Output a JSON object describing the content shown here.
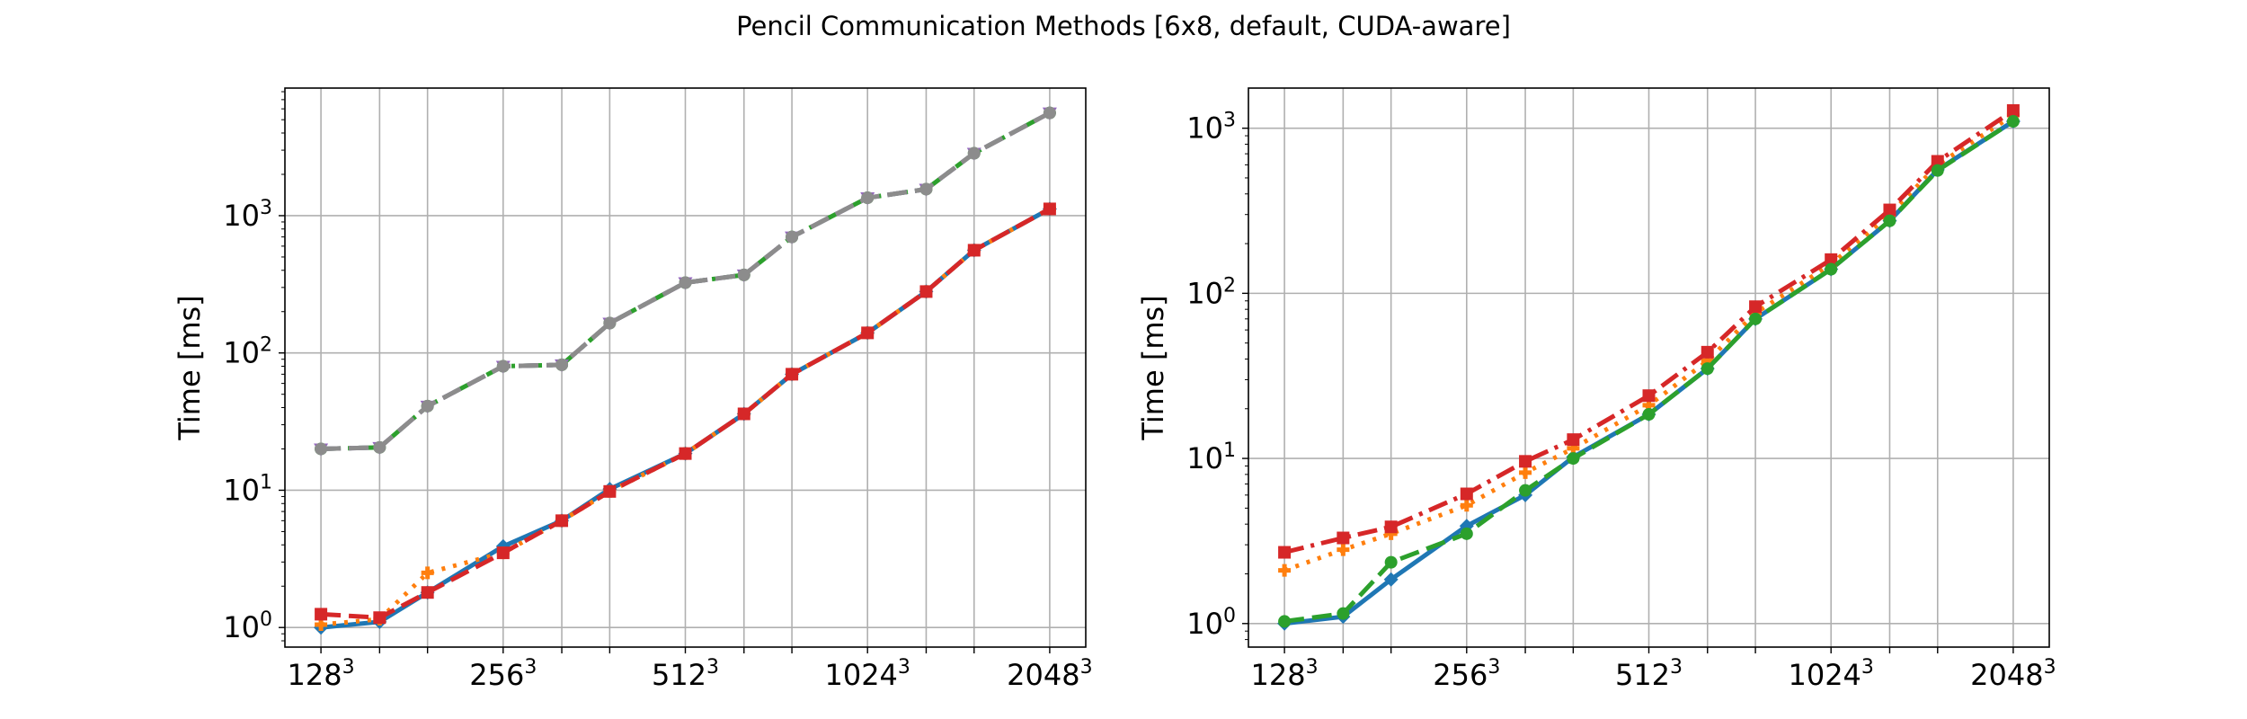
{
  "figure": {
    "title": "Pencil Communication Methods [6x8, default, CUDA-aware]"
  },
  "chart_data": [
    {
      "type": "line",
      "title": "",
      "xlabel": "",
      "ylabel": "Time [ms]",
      "yscale": "log",
      "ylim": [
        0.72,
        8500
      ],
      "grid": true,
      "x": [
        128,
        160,
        192,
        256,
        320,
        384,
        512,
        640,
        768,
        1024,
        1280,
        1536,
        2048
      ],
      "xticks": [
        128,
        256,
        512,
        1024,
        2048
      ],
      "xtick_labels": [
        {
          "base": "128",
          "exp": "3"
        },
        {
          "base": "256",
          "exp": "3"
        },
        {
          "base": "512",
          "exp": "3"
        },
        {
          "base": "1024",
          "exp": "3"
        },
        {
          "base": "2048",
          "exp": "3"
        }
      ],
      "yticks": [
        1,
        10,
        100,
        1000
      ],
      "ytick_labels": [
        {
          "base": "10",
          "exp": "0"
        },
        {
          "base": "10",
          "exp": "1"
        },
        {
          "base": "10",
          "exp": "2"
        },
        {
          "base": "10",
          "exp": "3"
        }
      ],
      "series": [
        {
          "color": "#1f77b4",
          "style": "solid",
          "marker": "diamond",
          "values": [
            1.0,
            1.1,
            1.8,
            3.9,
            6.0,
            10.2,
            18.5,
            36.0,
            70.0,
            140.0,
            280.0,
            560.0,
            1120.0
          ]
        },
        {
          "color": "#ff7f0e",
          "style": "dotted",
          "marker": "plus",
          "values": [
            1.05,
            1.15,
            2.5,
            3.5,
            6.0,
            9.8,
            18.5,
            36.0,
            70.0,
            140.0,
            280.0,
            560.0,
            1120.0
          ]
        },
        {
          "color": "#d62728",
          "style": "dashed",
          "marker": "square",
          "values": [
            1.25,
            1.18,
            1.8,
            3.5,
            6.0,
            9.8,
            18.5,
            36.0,
            70.0,
            140.0,
            280.0,
            560.0,
            1120.0
          ]
        },
        {
          "color": "#2ca02c",
          "style": "dashdot",
          "marker": "circle",
          "values": [
            20.0,
            20.5,
            41.0,
            80.0,
            82.0,
            165.0,
            325.0,
            370.0,
            700.0,
            1350.0,
            1560.0,
            2850.0,
            5600.0
          ]
        },
        {
          "color": "#9467bd",
          "style": "dashed",
          "marker": "triangle",
          "values": [
            20.0,
            20.5,
            41.0,
            80.0,
            82.0,
            165.0,
            325.0,
            370.0,
            700.0,
            1350.0,
            1560.0,
            2850.0,
            5600.0
          ]
        },
        {
          "color": "#8c8c8c",
          "style": "dashed",
          "marker": "circle",
          "values": [
            20.0,
            20.5,
            41.0,
            80.0,
            82.0,
            165.0,
            325.0,
            370.0,
            700.0,
            1350.0,
            1560.0,
            2850.0,
            5600.0
          ]
        }
      ]
    },
    {
      "type": "line",
      "title": "",
      "xlabel": "",
      "ylabel": "Time [ms]",
      "yscale": "log",
      "ylim": [
        0.72,
        1750
      ],
      "grid": true,
      "x": [
        128,
        160,
        192,
        256,
        320,
        384,
        512,
        640,
        768,
        1024,
        1280,
        1536,
        2048
      ],
      "xticks": [
        128,
        256,
        512,
        1024,
        2048
      ],
      "xtick_labels": [
        {
          "base": "128",
          "exp": "3"
        },
        {
          "base": "256",
          "exp": "3"
        },
        {
          "base": "512",
          "exp": "3"
        },
        {
          "base": "1024",
          "exp": "3"
        },
        {
          "base": "2048",
          "exp": "3"
        }
      ],
      "yticks": [
        1,
        10,
        100,
        1000
      ],
      "ytick_labels": [
        {
          "base": "10",
          "exp": "0"
        },
        {
          "base": "10",
          "exp": "1"
        },
        {
          "base": "10",
          "exp": "2"
        },
        {
          "base": "10",
          "exp": "3"
        }
      ],
      "series": [
        {
          "color": "#1f77b4",
          "style": "solid",
          "marker": "diamond",
          "values": [
            1.0,
            1.1,
            1.85,
            3.9,
            6.0,
            10.2,
            18.5,
            35.0,
            70.0,
            140.0,
            275.0,
            560.0,
            1100.0
          ]
        },
        {
          "color": "#ff7f0e",
          "style": "dotted",
          "marker": "plus",
          "values": [
            2.1,
            2.8,
            3.5,
            5.2,
            8.2,
            11.5,
            21.0,
            39.0,
            76.0,
            150.0,
            300.0,
            600.0,
            1200.0
          ]
        },
        {
          "color": "#d62728",
          "style": "dashdot",
          "marker": "square",
          "values": [
            2.7,
            3.3,
            3.85,
            6.1,
            9.6,
            13.0,
            24.0,
            44.0,
            83.0,
            160.0,
            320.0,
            630.0,
            1280.0
          ]
        },
        {
          "color": "#2ca02c",
          "style": "dashed",
          "marker": "circle",
          "values": [
            1.03,
            1.15,
            2.35,
            3.5,
            6.4,
            10.0,
            18.5,
            35.0,
            70.0,
            140.0,
            275.0,
            555.0,
            1100.0
          ]
        }
      ]
    }
  ]
}
